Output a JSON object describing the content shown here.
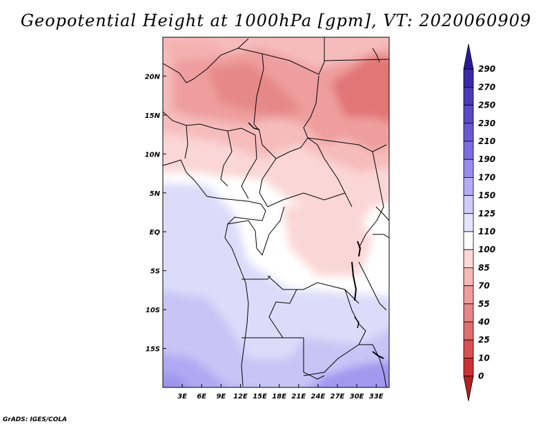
{
  "title": "Geopotential Height at 1000hPa [gpm], VT: 2020060909",
  "credit": "GrADS: IGES/COLA",
  "map": {
    "variable": "Geopotential Height",
    "level": "1000hPa",
    "units": "gpm",
    "valid_time": "2020060909",
    "lon_range": [
      0,
      35
    ],
    "lat_range": [
      -20,
      25
    ],
    "x_ticks": [
      "3E",
      "6E",
      "9E",
      "12E",
      "15E",
      "18E",
      "21E",
      "24E",
      "27E",
      "30E",
      "33E"
    ],
    "y_ticks": [
      "20N",
      "15N",
      "10N",
      "5N",
      "EQ",
      "5S",
      "10S",
      "15S"
    ]
  },
  "colorbar": {
    "labels": [
      "290",
      "270",
      "250",
      "230",
      "210",
      "190",
      "170",
      "150",
      "125",
      "110",
      "100",
      "85",
      "70",
      "55",
      "40",
      "25",
      "10",
      "0"
    ],
    "colors": [
      "#2a1a9a",
      "#3a2aa8",
      "#4a3ab8",
      "#5a4ac4",
      "#6a5ad0",
      "#7c6ee0",
      "#9a8cee",
      "#b4acf6",
      "#d0ccfa",
      "#e4e4fc",
      "#ffffff",
      "#fcd8d8",
      "#f6b8b8",
      "#ee9c9c",
      "#e68686",
      "#e06e6e",
      "#d85050",
      "#cc3232",
      "#b81e1e"
    ]
  }
}
